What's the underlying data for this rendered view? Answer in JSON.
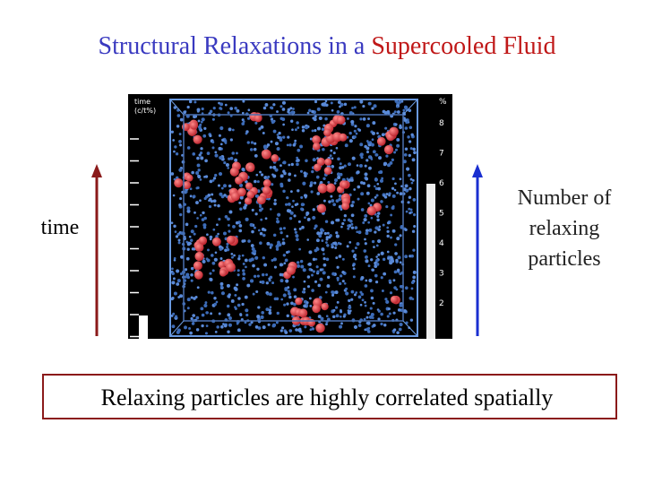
{
  "header": {
    "title_part1": "Structural Relaxations in a ",
    "title_part2": "Supercooled Fluid"
  },
  "left_label": "time",
  "right_label": [
    "Number of",
    "relaxing",
    "particles"
  ],
  "image": {
    "time_label": [
      "time",
      "(c/t%)"
    ],
    "scale_unit": "%",
    "scale_labels": [
      "8",
      "7",
      "6",
      "5",
      "4",
      "3",
      "2"
    ]
  },
  "caption": "Relaxing particles are highly correlated spatially"
}
